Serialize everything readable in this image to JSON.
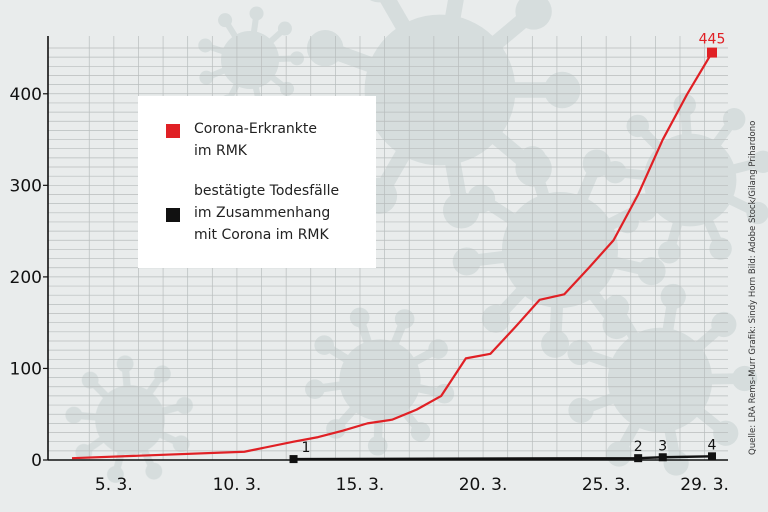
{
  "chart_data": {
    "type": "line",
    "ylim": [
      0,
      450
    ],
    "yticks": [
      0,
      100,
      200,
      300,
      400
    ],
    "x_domain": [
      "3.3.",
      "29.3."
    ],
    "xtick_labels": [
      "5. 3.",
      "10. 3.",
      "15. 3.",
      "20. 3.",
      "25. 3.",
      "29. 3."
    ],
    "grid": true,
    "legend_position": "top-left",
    "series": [
      {
        "name": "Corona-Erkrankte im RMK",
        "color": "#e02025",
        "x": [
          "3.3.",
          "10.3.",
          "12.3.",
          "13.3.",
          "14.3.",
          "15.3.",
          "16.3.",
          "17.3.",
          "18.3.",
          "19.3.",
          "20.3.",
          "21.3.",
          "22.3.",
          "23.3.",
          "24.3.",
          "25.3.",
          "26.3.",
          "27.3.",
          "28.3.",
          "29.3."
        ],
        "values": [
          2,
          9,
          20,
          25,
          32,
          40,
          44,
          55,
          70,
          111,
          116,
          145,
          175,
          181,
          210,
          240,
          290,
          350,
          400,
          445
        ],
        "end_label": "445"
      },
      {
        "name": "bestätigte Todesfälle im Zusammenhang mit Corona im RMK",
        "color": "#111111",
        "x": [
          "12.3.",
          "26.3.",
          "27.3.",
          "29.3."
        ],
        "values": [
          1,
          2,
          3,
          4
        ],
        "point_labels": [
          "1",
          "2",
          "3",
          "4"
        ]
      }
    ]
  },
  "legend": {
    "items": [
      {
        "label_line1": "Corona-Erkrankte",
        "label_line2": "im RMK"
      },
      {
        "label_line1": "bestätigte Todesfälle",
        "label_line2": "im Zusammenhang",
        "label_line3": "mit Corona  im RMK"
      }
    ]
  },
  "credit": "Quelle: LRA Rems-Murr   Grafik: Sindy Horn   Bild: Adobe Stock/Gilang Prihardono"
}
